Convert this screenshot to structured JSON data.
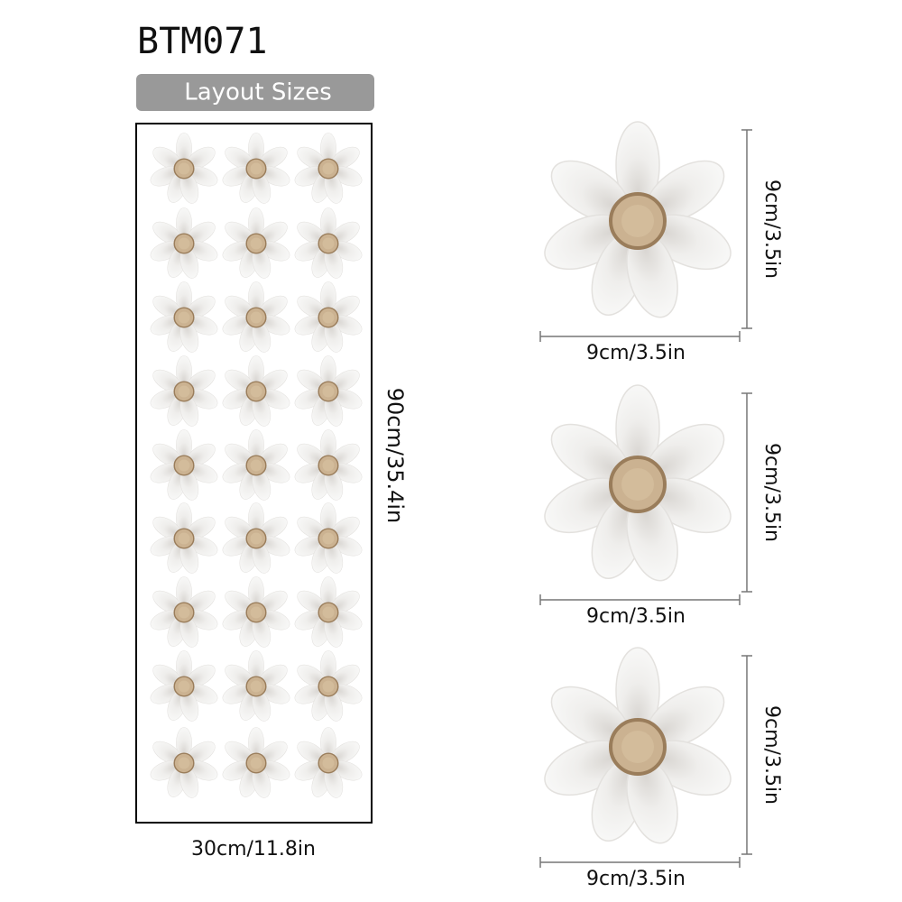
{
  "header": {
    "title": "BTM071",
    "badge": "Layout Sizes"
  },
  "sheet": {
    "height": "90cm/35.4in",
    "width": "30cm/11.8in"
  },
  "stickers": [
    {
      "width": "9cm/3.5in",
      "height": "9cm/3.5in"
    },
    {
      "width": "9cm/3.5in",
      "height": "9cm/3.5in"
    },
    {
      "width": "9cm/3.5in",
      "height": "9cm/3.5in"
    }
  ]
}
